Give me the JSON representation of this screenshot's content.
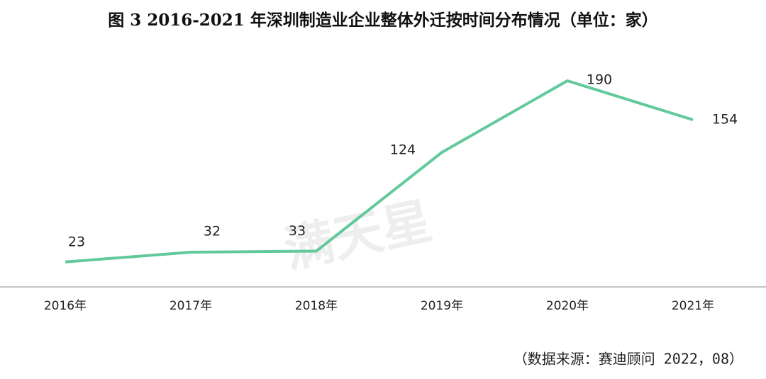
{
  "chart_data": {
    "type": "line",
    "title": "图 3 2016-2021 年深圳制造业企业整体外迁按时间分布情况（单位：家）",
    "categories": [
      "2016年",
      "2017年",
      "2018年",
      "2019年",
      "2020年",
      "2021年"
    ],
    "values": [
      23,
      32,
      33,
      124,
      190,
      154
    ],
    "color": "#62c99b",
    "source": "（数据来源：赛迪顾问 2022，08）",
    "watermark": "满天星"
  }
}
